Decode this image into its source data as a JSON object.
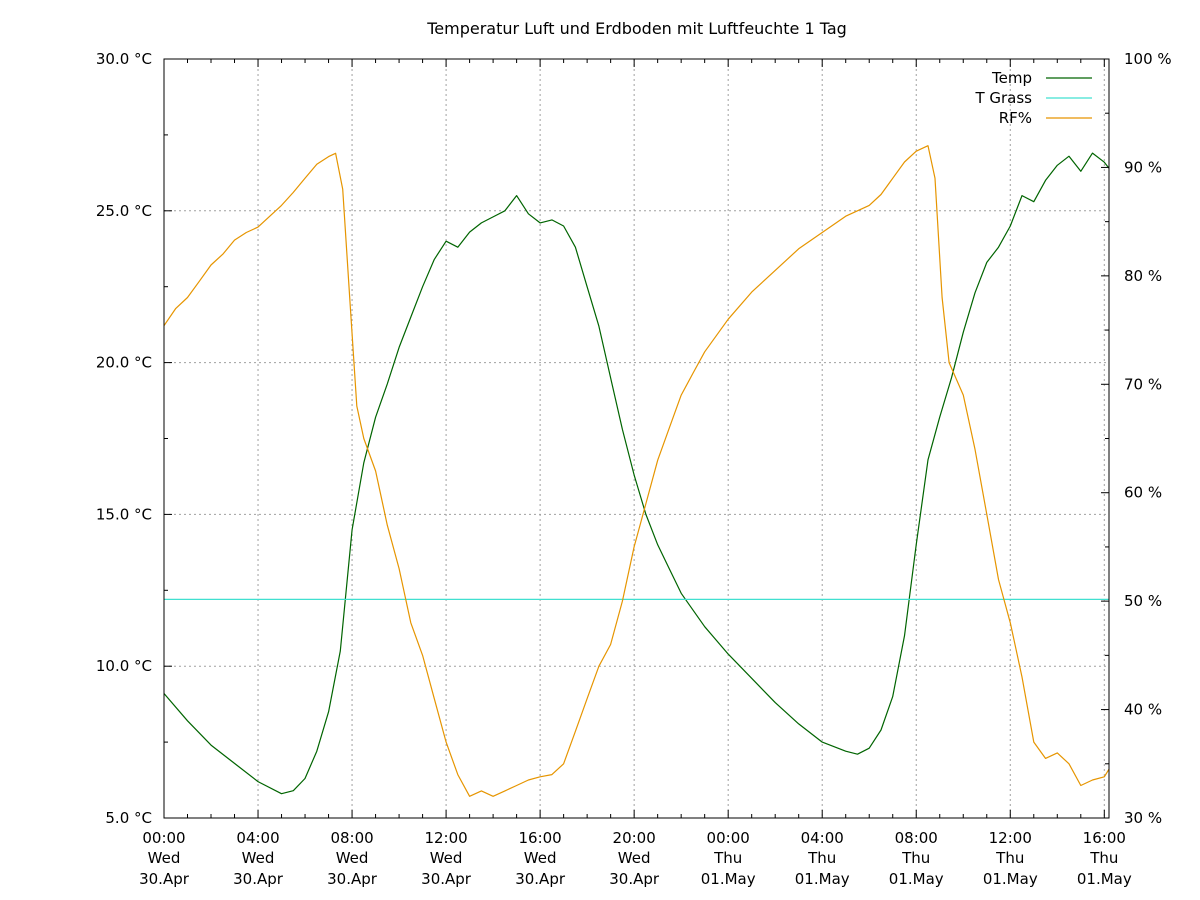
{
  "chart_data": {
    "type": "line",
    "title": "Temperatur Luft und Erdboden mit Luftfeuchte 1 Tag",
    "x_ticks": [
      {
        "hours": 0,
        "time": "00:00",
        "day": "Wed",
        "date": "30.Apr"
      },
      {
        "hours": 4,
        "time": "04:00",
        "day": "Wed",
        "date": "30.Apr"
      },
      {
        "hours": 8,
        "time": "08:00",
        "day": "Wed",
        "date": "30.Apr"
      },
      {
        "hours": 12,
        "time": "12:00",
        "day": "Wed",
        "date": "30.Apr"
      },
      {
        "hours": 16,
        "time": "16:00",
        "day": "Wed",
        "date": "30.Apr"
      },
      {
        "hours": 20,
        "time": "20:00",
        "day": "Wed",
        "date": "30.Apr"
      },
      {
        "hours": 24,
        "time": "00:00",
        "day": "Thu",
        "date": "01.May"
      },
      {
        "hours": 28,
        "time": "04:00",
        "day": "Thu",
        "date": "01.May"
      },
      {
        "hours": 32,
        "time": "08:00",
        "day": "Thu",
        "date": "01.May"
      },
      {
        "hours": 36,
        "time": "12:00",
        "day": "Thu",
        "date": "01.May"
      },
      {
        "hours": 40,
        "time": "16:00",
        "day": "Thu",
        "date": "01.May"
      }
    ],
    "xlim_hours": [
      0,
      40.2
    ],
    "y_left": {
      "ylim": [
        5,
        30
      ],
      "ticks": [
        5,
        10,
        15,
        20,
        25,
        30
      ],
      "tick_labels": [
        "5.0 °C",
        "10.0 °C",
        "15.0 °C",
        "20.0 °C",
        "25.0 °C",
        "30.0 °C"
      ]
    },
    "y_right": {
      "ylim": [
        30,
        100
      ],
      "ticks": [
        30,
        40,
        50,
        60,
        70,
        80,
        90,
        100
      ],
      "tick_labels": [
        "30 %",
        "40 %",
        "50 %",
        "60 %",
        "70 %",
        "80 %",
        "90 %",
        "100 %"
      ]
    },
    "grid": true,
    "legend_position": "top-right",
    "series": [
      {
        "name": "Temp",
        "axis": "left",
        "color": "#006400",
        "points": [
          [
            0,
            9.1
          ],
          [
            1,
            8.2
          ],
          [
            2,
            7.4
          ],
          [
            3,
            6.8
          ],
          [
            4,
            6.2
          ],
          [
            5,
            5.8
          ],
          [
            5.5,
            5.9
          ],
          [
            6,
            6.3
          ],
          [
            6.5,
            7.2
          ],
          [
            7,
            8.5
          ],
          [
            7.5,
            10.5
          ],
          [
            8,
            14.5
          ],
          [
            8.5,
            16.7
          ],
          [
            9,
            18.2
          ],
          [
            9.5,
            19.3
          ],
          [
            10,
            20.5
          ],
          [
            10.5,
            21.5
          ],
          [
            11,
            22.5
          ],
          [
            11.5,
            23.4
          ],
          [
            12,
            24.0
          ],
          [
            12.5,
            23.8
          ],
          [
            13,
            24.3
          ],
          [
            13.5,
            24.6
          ],
          [
            14,
            24.8
          ],
          [
            14.5,
            25.0
          ],
          [
            15,
            25.5
          ],
          [
            15.5,
            24.9
          ],
          [
            16,
            24.6
          ],
          [
            16.5,
            24.7
          ],
          [
            17,
            24.5
          ],
          [
            17.5,
            23.8
          ],
          [
            18,
            22.5
          ],
          [
            18.5,
            21.2
          ],
          [
            19,
            19.5
          ],
          [
            19.5,
            17.8
          ],
          [
            20,
            16.3
          ],
          [
            20.5,
            15.0
          ],
          [
            21,
            14.0
          ],
          [
            21.5,
            13.2
          ],
          [
            22,
            12.4
          ],
          [
            23,
            11.3
          ],
          [
            24,
            10.4
          ],
          [
            25,
            9.6
          ],
          [
            26,
            8.8
          ],
          [
            27,
            8.1
          ],
          [
            28,
            7.5
          ],
          [
            29,
            7.2
          ],
          [
            29.5,
            7.1
          ],
          [
            30,
            7.3
          ],
          [
            30.5,
            7.9
          ],
          [
            31,
            9.0
          ],
          [
            31.5,
            11.0
          ],
          [
            32,
            14.0
          ],
          [
            32.5,
            16.8
          ],
          [
            33,
            18.2
          ],
          [
            33.5,
            19.5
          ],
          [
            34,
            21.0
          ],
          [
            34.5,
            22.3
          ],
          [
            35,
            23.3
          ],
          [
            35.5,
            23.8
          ],
          [
            36,
            24.5
          ],
          [
            36.5,
            25.5
          ],
          [
            37,
            25.3
          ],
          [
            37.5,
            26.0
          ],
          [
            38,
            26.5
          ],
          [
            38.5,
            26.8
          ],
          [
            39,
            26.3
          ],
          [
            39.5,
            26.9
          ],
          [
            40,
            26.6
          ],
          [
            40.2,
            26.4
          ]
        ]
      },
      {
        "name": "T Grass",
        "axis": "left",
        "color": "#40e0d0",
        "points": [
          [
            0,
            12.2
          ],
          [
            40.2,
            12.2
          ]
        ]
      },
      {
        "name": "RF%",
        "axis": "right",
        "color": "#e69500",
        "points": [
          [
            0,
            75.4
          ],
          [
            0.5,
            77
          ],
          [
            1,
            78
          ],
          [
            1.5,
            79.5
          ],
          [
            2,
            81
          ],
          [
            2.5,
            82
          ],
          [
            3,
            83.3
          ],
          [
            3.5,
            84.0
          ],
          [
            4,
            84.5
          ],
          [
            4.5,
            85.5
          ],
          [
            5,
            86.5
          ],
          [
            5.5,
            87.7
          ],
          [
            6,
            89
          ],
          [
            6.5,
            90.3
          ],
          [
            7,
            91
          ],
          [
            7.3,
            91.3
          ],
          [
            7.6,
            88
          ],
          [
            7.9,
            78
          ],
          [
            8.2,
            68
          ],
          [
            8.5,
            65
          ],
          [
            9,
            62
          ],
          [
            9.5,
            57
          ],
          [
            10,
            53
          ],
          [
            10.5,
            48
          ],
          [
            11,
            45
          ],
          [
            11.5,
            41
          ],
          [
            12,
            37
          ],
          [
            12.5,
            34
          ],
          [
            13,
            32
          ],
          [
            13.5,
            32.5
          ],
          [
            14,
            32
          ],
          [
            14.5,
            32.5
          ],
          [
            15,
            33
          ],
          [
            15.5,
            33.5
          ],
          [
            16,
            33.8
          ],
          [
            16.5,
            34
          ],
          [
            17,
            35
          ],
          [
            17.5,
            38
          ],
          [
            18,
            41
          ],
          [
            18.5,
            44
          ],
          [
            19,
            46
          ],
          [
            19.5,
            50
          ],
          [
            20,
            55
          ],
          [
            20.5,
            59
          ],
          [
            21,
            63
          ],
          [
            21.5,
            66
          ],
          [
            22,
            69
          ],
          [
            22.5,
            71
          ],
          [
            23,
            73
          ],
          [
            24,
            76
          ],
          [
            25,
            78.5
          ],
          [
            26,
            80.5
          ],
          [
            27,
            82.5
          ],
          [
            28,
            84
          ],
          [
            29,
            85.5
          ],
          [
            30,
            86.5
          ],
          [
            30.5,
            87.5
          ],
          [
            31,
            89
          ],
          [
            31.5,
            90.5
          ],
          [
            32,
            91.5
          ],
          [
            32.5,
            92
          ],
          [
            32.8,
            89
          ],
          [
            33.1,
            78
          ],
          [
            33.4,
            72
          ],
          [
            34,
            69
          ],
          [
            34.5,
            64
          ],
          [
            35,
            58
          ],
          [
            35.5,
            52
          ],
          [
            36,
            48
          ],
          [
            36.5,
            43
          ],
          [
            37,
            37
          ],
          [
            37.5,
            35.5
          ],
          [
            38,
            36
          ],
          [
            38.5,
            35
          ],
          [
            39,
            33
          ],
          [
            39.5,
            33.5
          ],
          [
            40,
            33.8
          ],
          [
            40.2,
            34.5
          ]
        ]
      }
    ]
  }
}
